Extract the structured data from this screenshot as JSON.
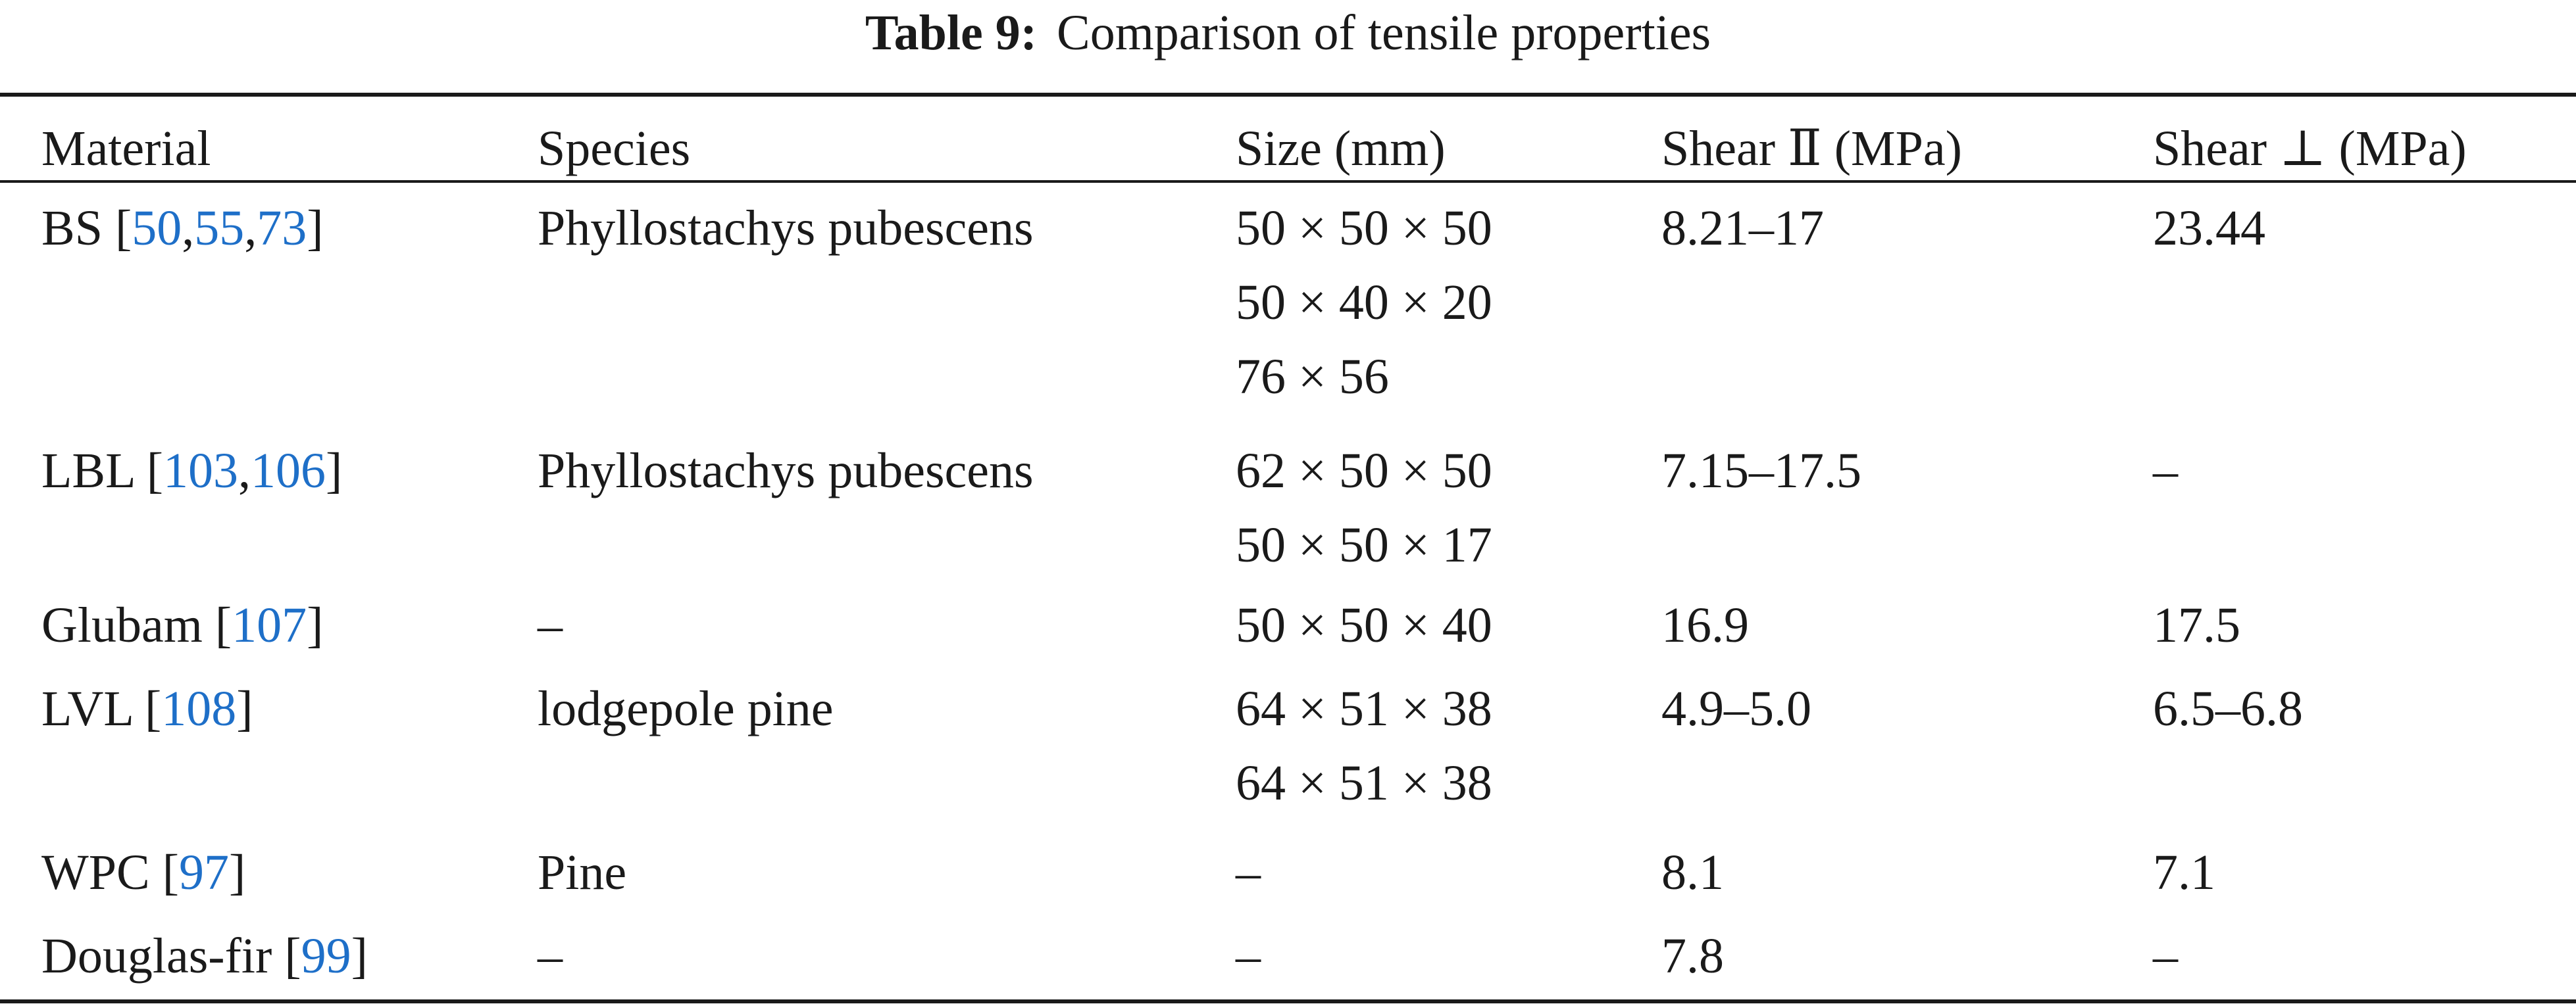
{
  "caption": {
    "label": "Table 9:",
    "text": "Comparison of tensile properties"
  },
  "headers": {
    "material": "Material",
    "species": "Species",
    "size": "Size (mm)",
    "shear_parallel": "Shear Ⅱ (MPa)",
    "shear_perp": "Shear ⊥ (MPa)"
  },
  "rows": [
    {
      "material": "BS",
      "refs": "50,55,73",
      "ref_parts": [
        "50",
        ",",
        "55",
        ",",
        "73"
      ],
      "species": "Phyllostachys pubescens",
      "sizes": [
        "50 × 50 × 50",
        "50 × 40 × 20",
        "76 × 56"
      ],
      "shear_parallel": "8.21–17",
      "shear_perp": "23.44"
    },
    {
      "material": "LBL",
      "ref_parts": [
        "103",
        ",",
        "106"
      ],
      "species": "Phyllostachys pubescens",
      "sizes": [
        "62 × 50 × 50",
        "50 × 50 × 17"
      ],
      "shear_parallel": "7.15–17.5",
      "shear_perp": "–"
    },
    {
      "material": "Glubam",
      "ref_parts": [
        "107"
      ],
      "species": "–",
      "sizes": [
        "50 × 50 × 40"
      ],
      "shear_parallel": "16.9",
      "shear_perp": "17.5"
    },
    {
      "material": "LVL",
      "ref_parts": [
        "108"
      ],
      "species": "lodgepole pine",
      "sizes": [
        "64 × 51 × 38",
        "64 × 51 × 38"
      ],
      "shear_parallel": "4.9–5.0",
      "shear_perp": "6.5–6.8"
    },
    {
      "material": "WPC",
      "ref_parts": [
        "97"
      ],
      "species": "Pine",
      "sizes": [
        "–"
      ],
      "shear_parallel": "8.1",
      "shear_perp": "7.1"
    },
    {
      "material": "Douglas-fir",
      "ref_parts": [
        "99"
      ],
      "species": "–",
      "sizes": [
        "–"
      ],
      "shear_parallel": "7.8",
      "shear_perp": "–"
    }
  ],
  "colors": {
    "text": "#1a1a1a",
    "reference_link": "#1e6fc8",
    "background": "#ffffff"
  }
}
